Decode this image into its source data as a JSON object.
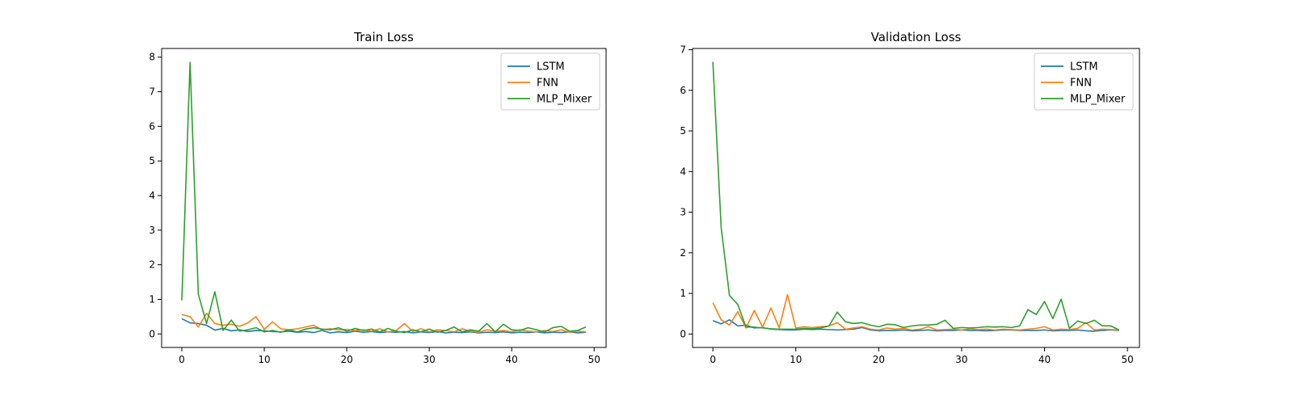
{
  "chart_data": [
    {
      "type": "line",
      "title": "Train Loss",
      "xlim": [
        -2.45,
        51.45
      ],
      "ylim": [
        -0.39,
        8.25
      ],
      "xticks": [
        0,
        10,
        20,
        30,
        40,
        50
      ],
      "yticks": [
        0,
        1,
        2,
        3,
        4,
        5,
        6,
        7,
        8
      ],
      "legend_position": "top-right",
      "x": [
        0,
        1,
        2,
        3,
        4,
        5,
        6,
        7,
        8,
        9,
        10,
        11,
        12,
        13,
        14,
        15,
        16,
        17,
        18,
        19,
        20,
        21,
        22,
        23,
        24,
        25,
        26,
        27,
        28,
        29,
        30,
        31,
        32,
        33,
        34,
        35,
        36,
        37,
        38,
        39,
        40,
        41,
        42,
        43,
        44,
        45,
        46,
        47,
        48,
        49
      ],
      "series": [
        {
          "name": "LSTM",
          "color": "#1f77b4",
          "values": [
            0.44,
            0.32,
            0.3,
            0.25,
            0.11,
            0.16,
            0.09,
            0.12,
            0.07,
            0.1,
            0.09,
            0.07,
            0.06,
            0.08,
            0.05,
            0.07,
            0.04,
            0.1,
            0.03,
            0.06,
            0.04,
            0.08,
            0.05,
            0.07,
            0.04,
            0.06,
            0.05,
            0.07,
            0.03,
            0.06,
            0.04,
            0.07,
            0.03,
            0.05,
            0.04,
            0.06,
            0.03,
            0.05,
            0.04,
            0.06,
            0.03,
            0.05,
            0.04,
            0.06,
            0.03,
            0.05,
            0.04,
            0.06,
            0.03,
            0.05
          ]
        },
        {
          "name": "FNN",
          "color": "#ff7f0e",
          "values": [
            0.56,
            0.5,
            0.2,
            0.6,
            0.3,
            0.25,
            0.28,
            0.22,
            0.32,
            0.5,
            0.13,
            0.35,
            0.15,
            0.12,
            0.15,
            0.2,
            0.25,
            0.12,
            0.15,
            0.12,
            0.13,
            0.1,
            0.12,
            0.08,
            0.15,
            0.06,
            0.1,
            0.3,
            0.07,
            0.15,
            0.06,
            0.12,
            0.1,
            0.06,
            0.15,
            0.08,
            0.05,
            0.12,
            0.08,
            0.1,
            0.06,
            0.12,
            0.08,
            0.06,
            0.1,
            0.07,
            0.12,
            0.05,
            0.08,
            0.06
          ]
        },
        {
          "name": "MLP_Mixer",
          "color": "#2ca02c",
          "values": [
            0.97,
            7.85,
            1.15,
            0.3,
            1.22,
            0.1,
            0.4,
            0.08,
            0.12,
            0.18,
            0.06,
            0.1,
            0.05,
            0.12,
            0.06,
            0.14,
            0.18,
            0.14,
            0.12,
            0.18,
            0.08,
            0.16,
            0.1,
            0.14,
            0.06,
            0.16,
            0.08,
            0.04,
            0.12,
            0.06,
            0.14,
            0.05,
            0.1,
            0.2,
            0.06,
            0.12,
            0.08,
            0.3,
            0.06,
            0.28,
            0.12,
            0.1,
            0.18,
            0.12,
            0.06,
            0.18,
            0.22,
            0.08,
            0.1,
            0.2
          ]
        }
      ]
    },
    {
      "type": "line",
      "title": "Validation Loss",
      "xlim": [
        -2.45,
        51.45
      ],
      "ylim": [
        -0.33,
        7.03
      ],
      "xticks": [
        0,
        10,
        20,
        30,
        40,
        50
      ],
      "yticks": [
        0,
        1,
        2,
        3,
        4,
        5,
        6,
        7
      ],
      "legend_position": "top-right",
      "x": [
        0,
        1,
        2,
        3,
        4,
        5,
        6,
        7,
        8,
        9,
        10,
        11,
        12,
        13,
        14,
        15,
        16,
        17,
        18,
        19,
        20,
        21,
        22,
        23,
        24,
        25,
        26,
        27,
        28,
        29,
        30,
        31,
        32,
        33,
        34,
        35,
        36,
        37,
        38,
        39,
        40,
        41,
        42,
        43,
        44,
        45,
        46,
        47,
        48,
        49
      ],
      "series": [
        {
          "name": "LSTM",
          "color": "#1f77b4",
          "values": [
            0.33,
            0.25,
            0.35,
            0.2,
            0.22,
            0.15,
            0.16,
            0.12,
            0.11,
            0.1,
            0.1,
            0.12,
            0.11,
            0.12,
            0.11,
            0.1,
            0.11,
            0.12,
            0.16,
            0.1,
            0.08,
            0.09,
            0.09,
            0.1,
            0.08,
            0.09,
            0.1,
            0.08,
            0.09,
            0.09,
            0.1,
            0.09,
            0.09,
            0.08,
            0.09,
            0.1,
            0.1,
            0.09,
            0.09,
            0.09,
            0.1,
            0.08,
            0.09,
            0.09,
            0.1,
            0.08,
            0.07,
            0.09,
            0.1,
            0.09
          ]
        },
        {
          "name": "FNN",
          "color": "#ff7f0e",
          "values": [
            0.77,
            0.35,
            0.22,
            0.55,
            0.15,
            0.58,
            0.17,
            0.64,
            0.15,
            0.97,
            0.15,
            0.18,
            0.16,
            0.18,
            0.2,
            0.28,
            0.12,
            0.15,
            0.18,
            0.12,
            0.1,
            0.15,
            0.12,
            0.14,
            0.1,
            0.12,
            0.18,
            0.1,
            0.11,
            0.12,
            0.1,
            0.13,
            0.11,
            0.12,
            0.1,
            0.12,
            0.11,
            0.1,
            0.12,
            0.14,
            0.18,
            0.1,
            0.12,
            0.11,
            0.14,
            0.28,
            0.1,
            0.12,
            0.11,
            0.1
          ]
        },
        {
          "name": "MLP_Mixer",
          "color": "#2ca02c",
          "values": [
            6.7,
            2.62,
            0.95,
            0.73,
            0.17,
            0.17,
            0.15,
            0.13,
            0.12,
            0.12,
            0.12,
            0.14,
            0.13,
            0.15,
            0.2,
            0.54,
            0.3,
            0.26,
            0.28,
            0.22,
            0.18,
            0.24,
            0.23,
            0.16,
            0.2,
            0.22,
            0.22,
            0.24,
            0.34,
            0.14,
            0.16,
            0.15,
            0.16,
            0.18,
            0.17,
            0.18,
            0.16,
            0.2,
            0.6,
            0.48,
            0.8,
            0.38,
            0.86,
            0.14,
            0.32,
            0.26,
            0.34,
            0.2,
            0.2,
            0.1
          ]
        }
      ]
    }
  ]
}
